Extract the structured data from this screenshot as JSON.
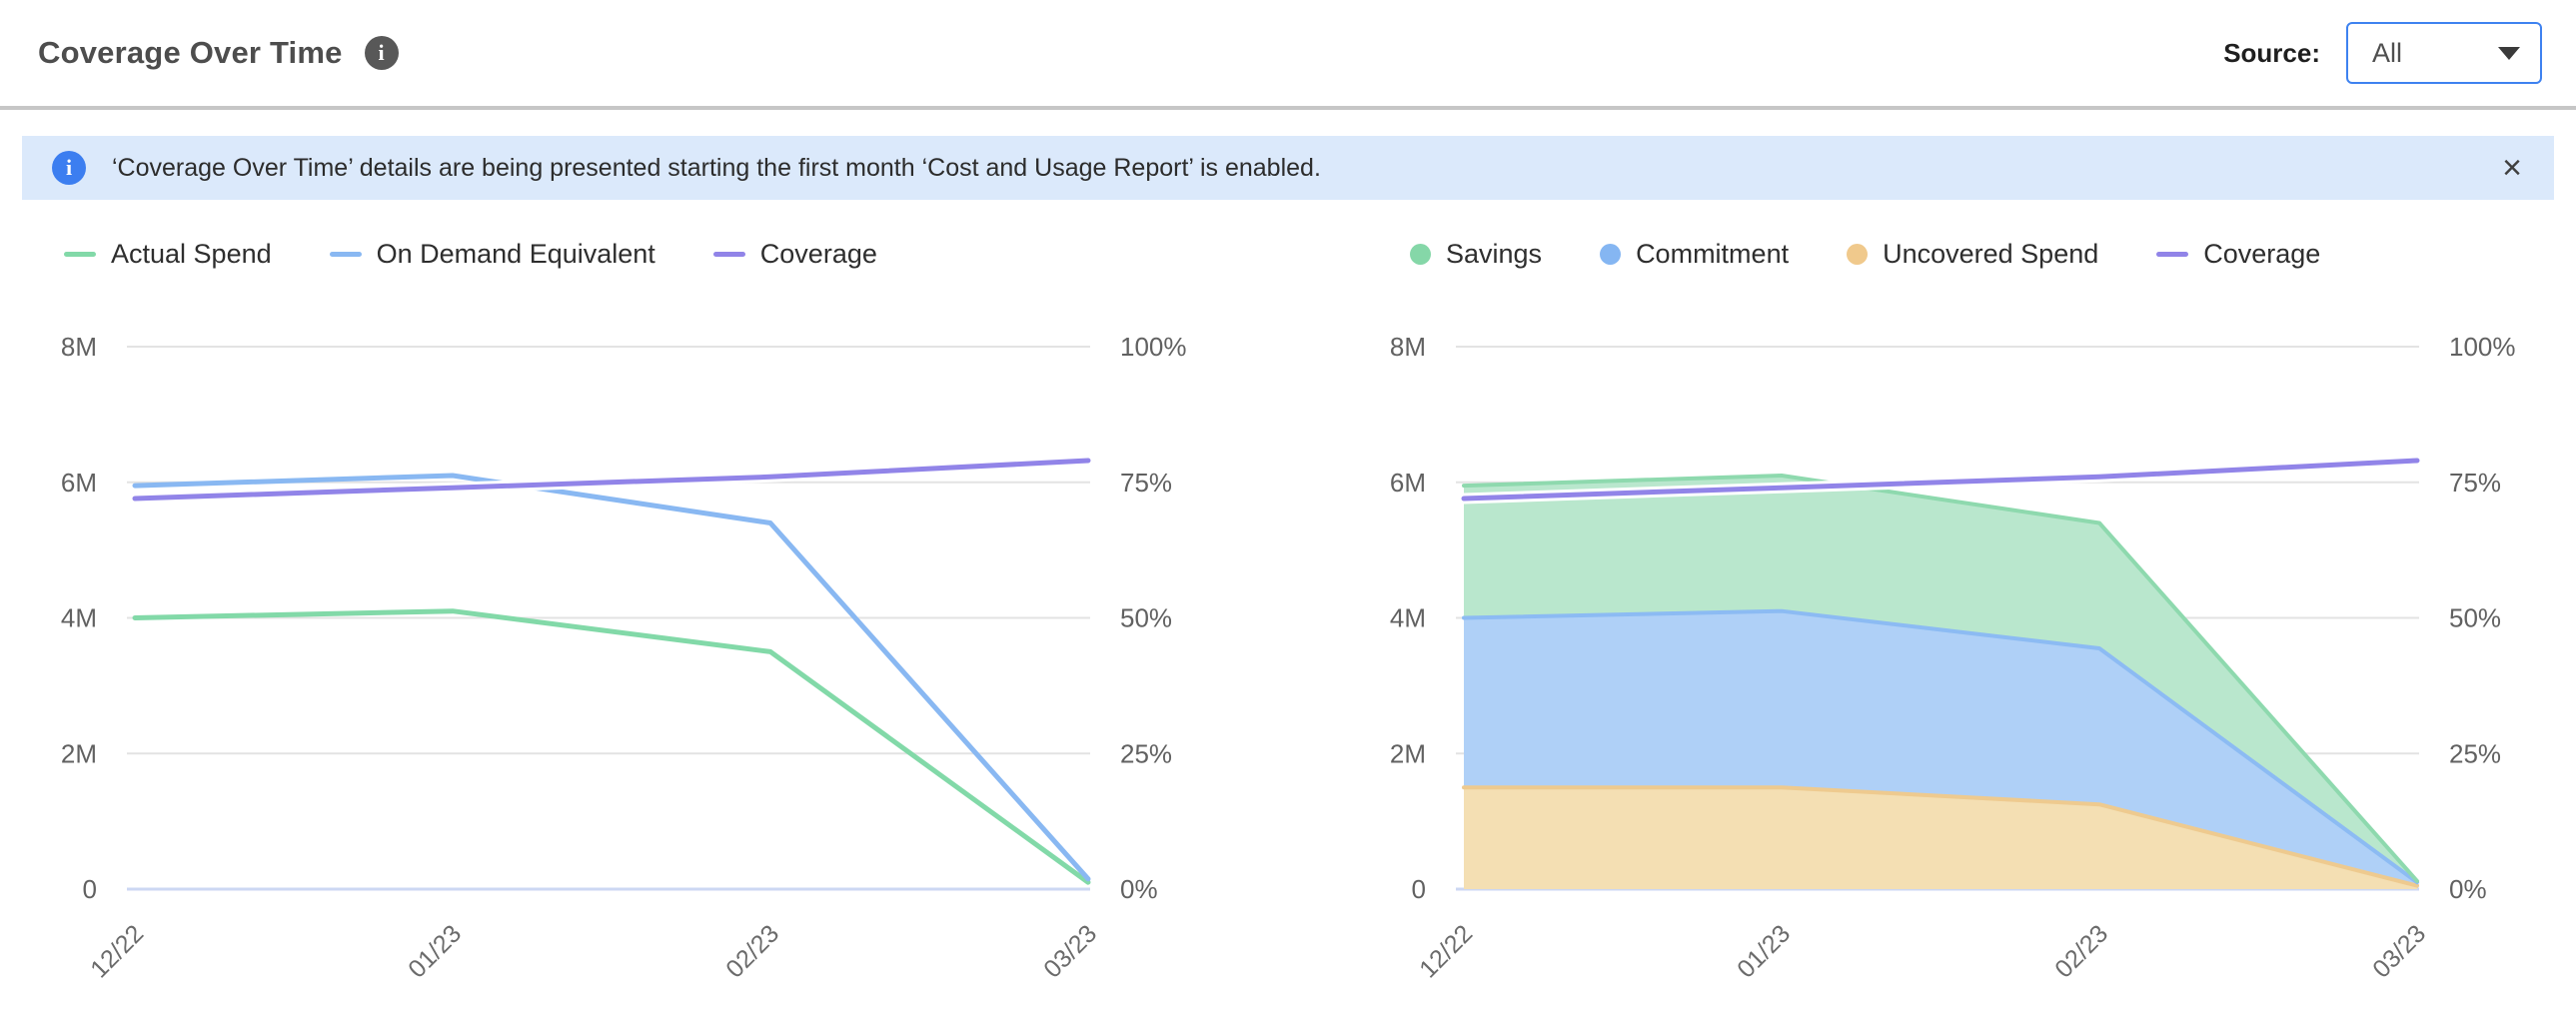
{
  "header": {
    "title": "Coverage Over Time",
    "source_label": "Source:",
    "source_value": "All"
  },
  "icons": {
    "info_glyph": "i",
    "close_glyph": "×"
  },
  "banner": {
    "text": "‘Coverage Over Time’ details are being presented starting the first month ‘Cost and Usage Report’ is enabled."
  },
  "colors": {
    "accent_blue": "#3e82f0",
    "banner_bg": "#dbe9fb",
    "header_divider": "#c6c6c6",
    "title_text": "#4d4d4d",
    "grid": "#e3e3e3",
    "zero_axis_line": "#ccd7f3",
    "y_axis_text": "#616161",
    "x_axis_text": "#6b6b6b",
    "legend_text": "#2e2e2e",
    "actual_spend": "#82d9a8",
    "on_demand_equivalent": "#89b8f2",
    "coverage": "#9184e8",
    "savings_fill": "#b9e7cd",
    "commitment_fill": "#afd0f7",
    "uncovered_fill": "#f4dfb3"
  },
  "chart_data": [
    {
      "type": "line",
      "title": "Spend vs On Demand Equivalent with Coverage",
      "x": [
        "12/22",
        "01/23",
        "02/23",
        "03/23"
      ],
      "y_left_ticks": [
        "0",
        "2M",
        "4M",
        "6M",
        "8M"
      ],
      "y_right_ticks": [
        "0%",
        "25%",
        "50%",
        "75%",
        "100%"
      ],
      "y_left_range_millions": [
        0,
        8
      ],
      "y_right_range_percent": [
        0,
        100
      ],
      "grid": true,
      "legend_position": "top-left",
      "series": [
        {
          "name": "Actual Spend",
          "kind": "line",
          "axis": "left",
          "color": "#82d9a8",
          "values_millions": [
            4.0,
            4.1,
            3.5,
            0.1
          ]
        },
        {
          "name": "On Demand Equivalent",
          "kind": "line",
          "axis": "left",
          "color": "#89b8f2",
          "values_millions": [
            5.95,
            6.1,
            5.4,
            0.15
          ]
        },
        {
          "name": "Coverage",
          "kind": "line",
          "axis": "right",
          "color": "#9184e8",
          "values_percent": [
            72,
            74,
            76,
            79
          ]
        }
      ]
    },
    {
      "type": "area",
      "stacked": true,
      "title": "Savings, Commitment and Uncovered Spend with Coverage",
      "x": [
        "12/22",
        "01/23",
        "02/23",
        "03/23"
      ],
      "y_left_ticks": [
        "0",
        "2M",
        "4M",
        "6M",
        "8M"
      ],
      "y_right_ticks": [
        "0%",
        "25%",
        "50%",
        "75%",
        "100%"
      ],
      "y_left_range_millions": [
        0,
        8
      ],
      "y_right_range_percent": [
        0,
        100
      ],
      "grid": true,
      "legend_position": "top-left",
      "stack_bottom_to_top": [
        "Uncovered Spend",
        "Commitment",
        "Savings"
      ],
      "series": [
        {
          "name": "Savings",
          "kind": "area",
          "axis": "left",
          "color": "#85d7a8",
          "fill": "#b9e7cd",
          "edge": "#8ed9ae",
          "values_millions": [
            1.95,
            2.0,
            1.85,
            0.02
          ]
        },
        {
          "name": "Commitment",
          "kind": "area",
          "axis": "left",
          "color": "#85b6f2",
          "fill": "#afd0f7",
          "edge": "#8cbbf3",
          "values_millions": [
            2.5,
            2.6,
            2.3,
            0.05
          ]
        },
        {
          "name": "Uncovered Spend",
          "kind": "area",
          "axis": "left",
          "color": "#f0c98c",
          "fill": "#f4dfb3",
          "edge": "#eeca8f",
          "values_millions": [
            1.5,
            1.5,
            1.25,
            0.05
          ]
        },
        {
          "name": "Coverage",
          "kind": "line",
          "axis": "right",
          "color": "#9184e8",
          "values_percent": [
            72,
            74,
            76,
            79
          ]
        }
      ]
    }
  ]
}
